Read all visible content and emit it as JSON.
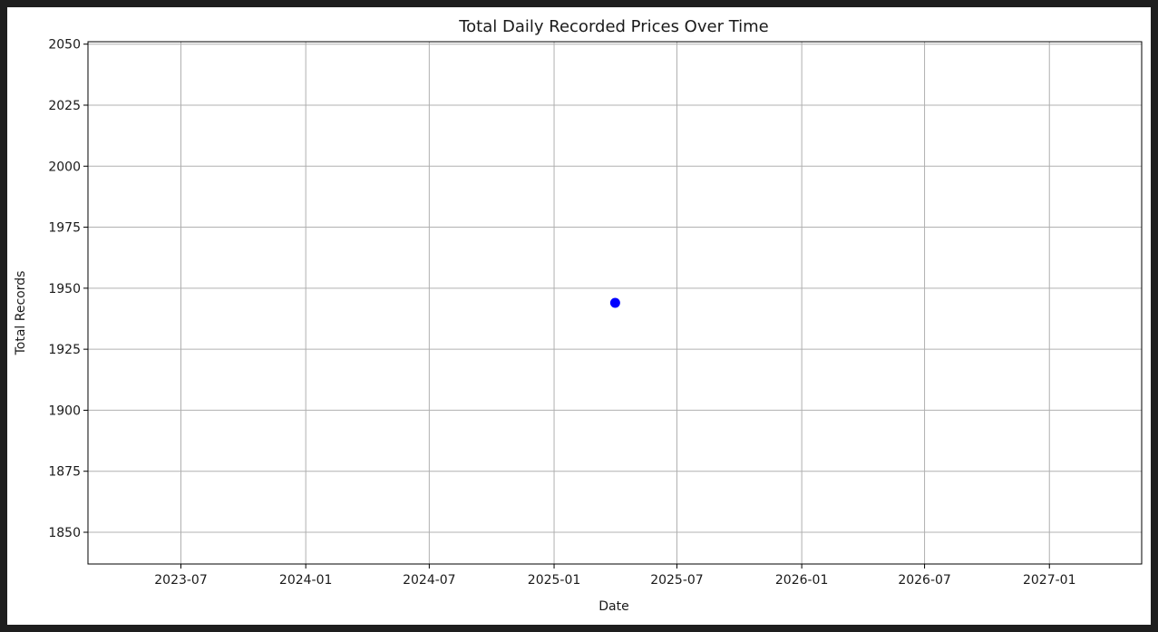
{
  "chart_data": {
    "type": "scatter",
    "title": "Total Daily Recorded Prices Over Time",
    "xlabel": "Date",
    "ylabel": "Total Records",
    "x_ticks": [
      "2023-07",
      "2024-01",
      "2024-07",
      "2025-01",
      "2025-07",
      "2026-01",
      "2026-07",
      "2027-01"
    ],
    "y_ticks": [
      1850,
      1875,
      1900,
      1925,
      1950,
      1975,
      2000,
      2025,
      2050
    ],
    "xlim": [
      "2023-02-14",
      "2027-05-17"
    ],
    "ylim": [
      1837,
      2051
    ],
    "grid": true,
    "marker_color": "#0000ff",
    "points": [
      {
        "x": "2025-04-01",
        "y": 1944
      }
    ]
  }
}
